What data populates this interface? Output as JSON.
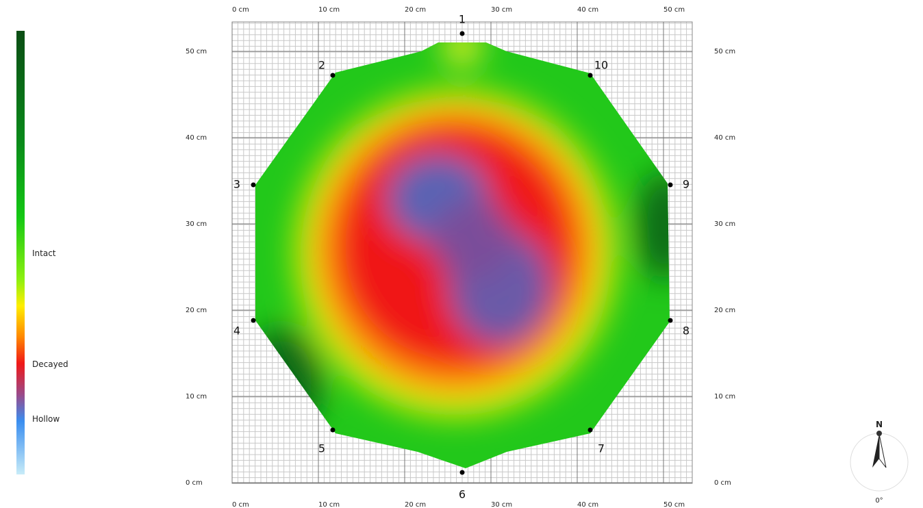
{
  "scale": {
    "labels": [
      "Intact",
      "Decayed",
      "Hollow"
    ]
  },
  "x_axis": {
    "ticks": [
      "0 cm",
      "10 cm",
      "20 cm",
      "30 cm",
      "40 cm",
      "50 cm"
    ]
  },
  "y_axis": {
    "ticks": [
      "0 cm",
      "10 cm",
      "20 cm",
      "30 cm",
      "40 cm",
      "50 cm"
    ]
  },
  "sensors": [
    "1",
    "2",
    "3",
    "4",
    "5",
    "6",
    "7",
    "8",
    "9",
    "10"
  ],
  "compass": {
    "north": "N",
    "angle": "0°"
  }
}
